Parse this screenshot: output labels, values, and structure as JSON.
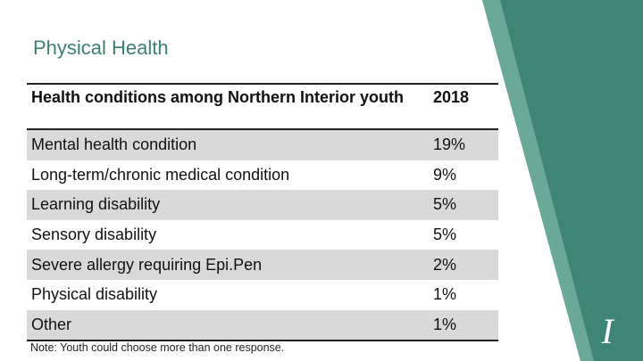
{
  "header": {
    "title": "Physical Health"
  },
  "table": {
    "columns": [
      "Health conditions among Northern Interior youth",
      "2018"
    ],
    "rows": [
      [
        "Mental health condition",
        "19%"
      ],
      [
        "Long-term/chronic medical condition",
        "9%"
      ],
      [
        "Learning disability",
        "5%"
      ],
      [
        "Sensory disability",
        "5%"
      ],
      [
        "Severe allergy requiring Epi.Pen",
        "2%"
      ],
      [
        "Physical disability",
        "1%"
      ],
      [
        "Other",
        "1%"
      ]
    ]
  },
  "note": "Note: Youth could choose more than one response."
}
